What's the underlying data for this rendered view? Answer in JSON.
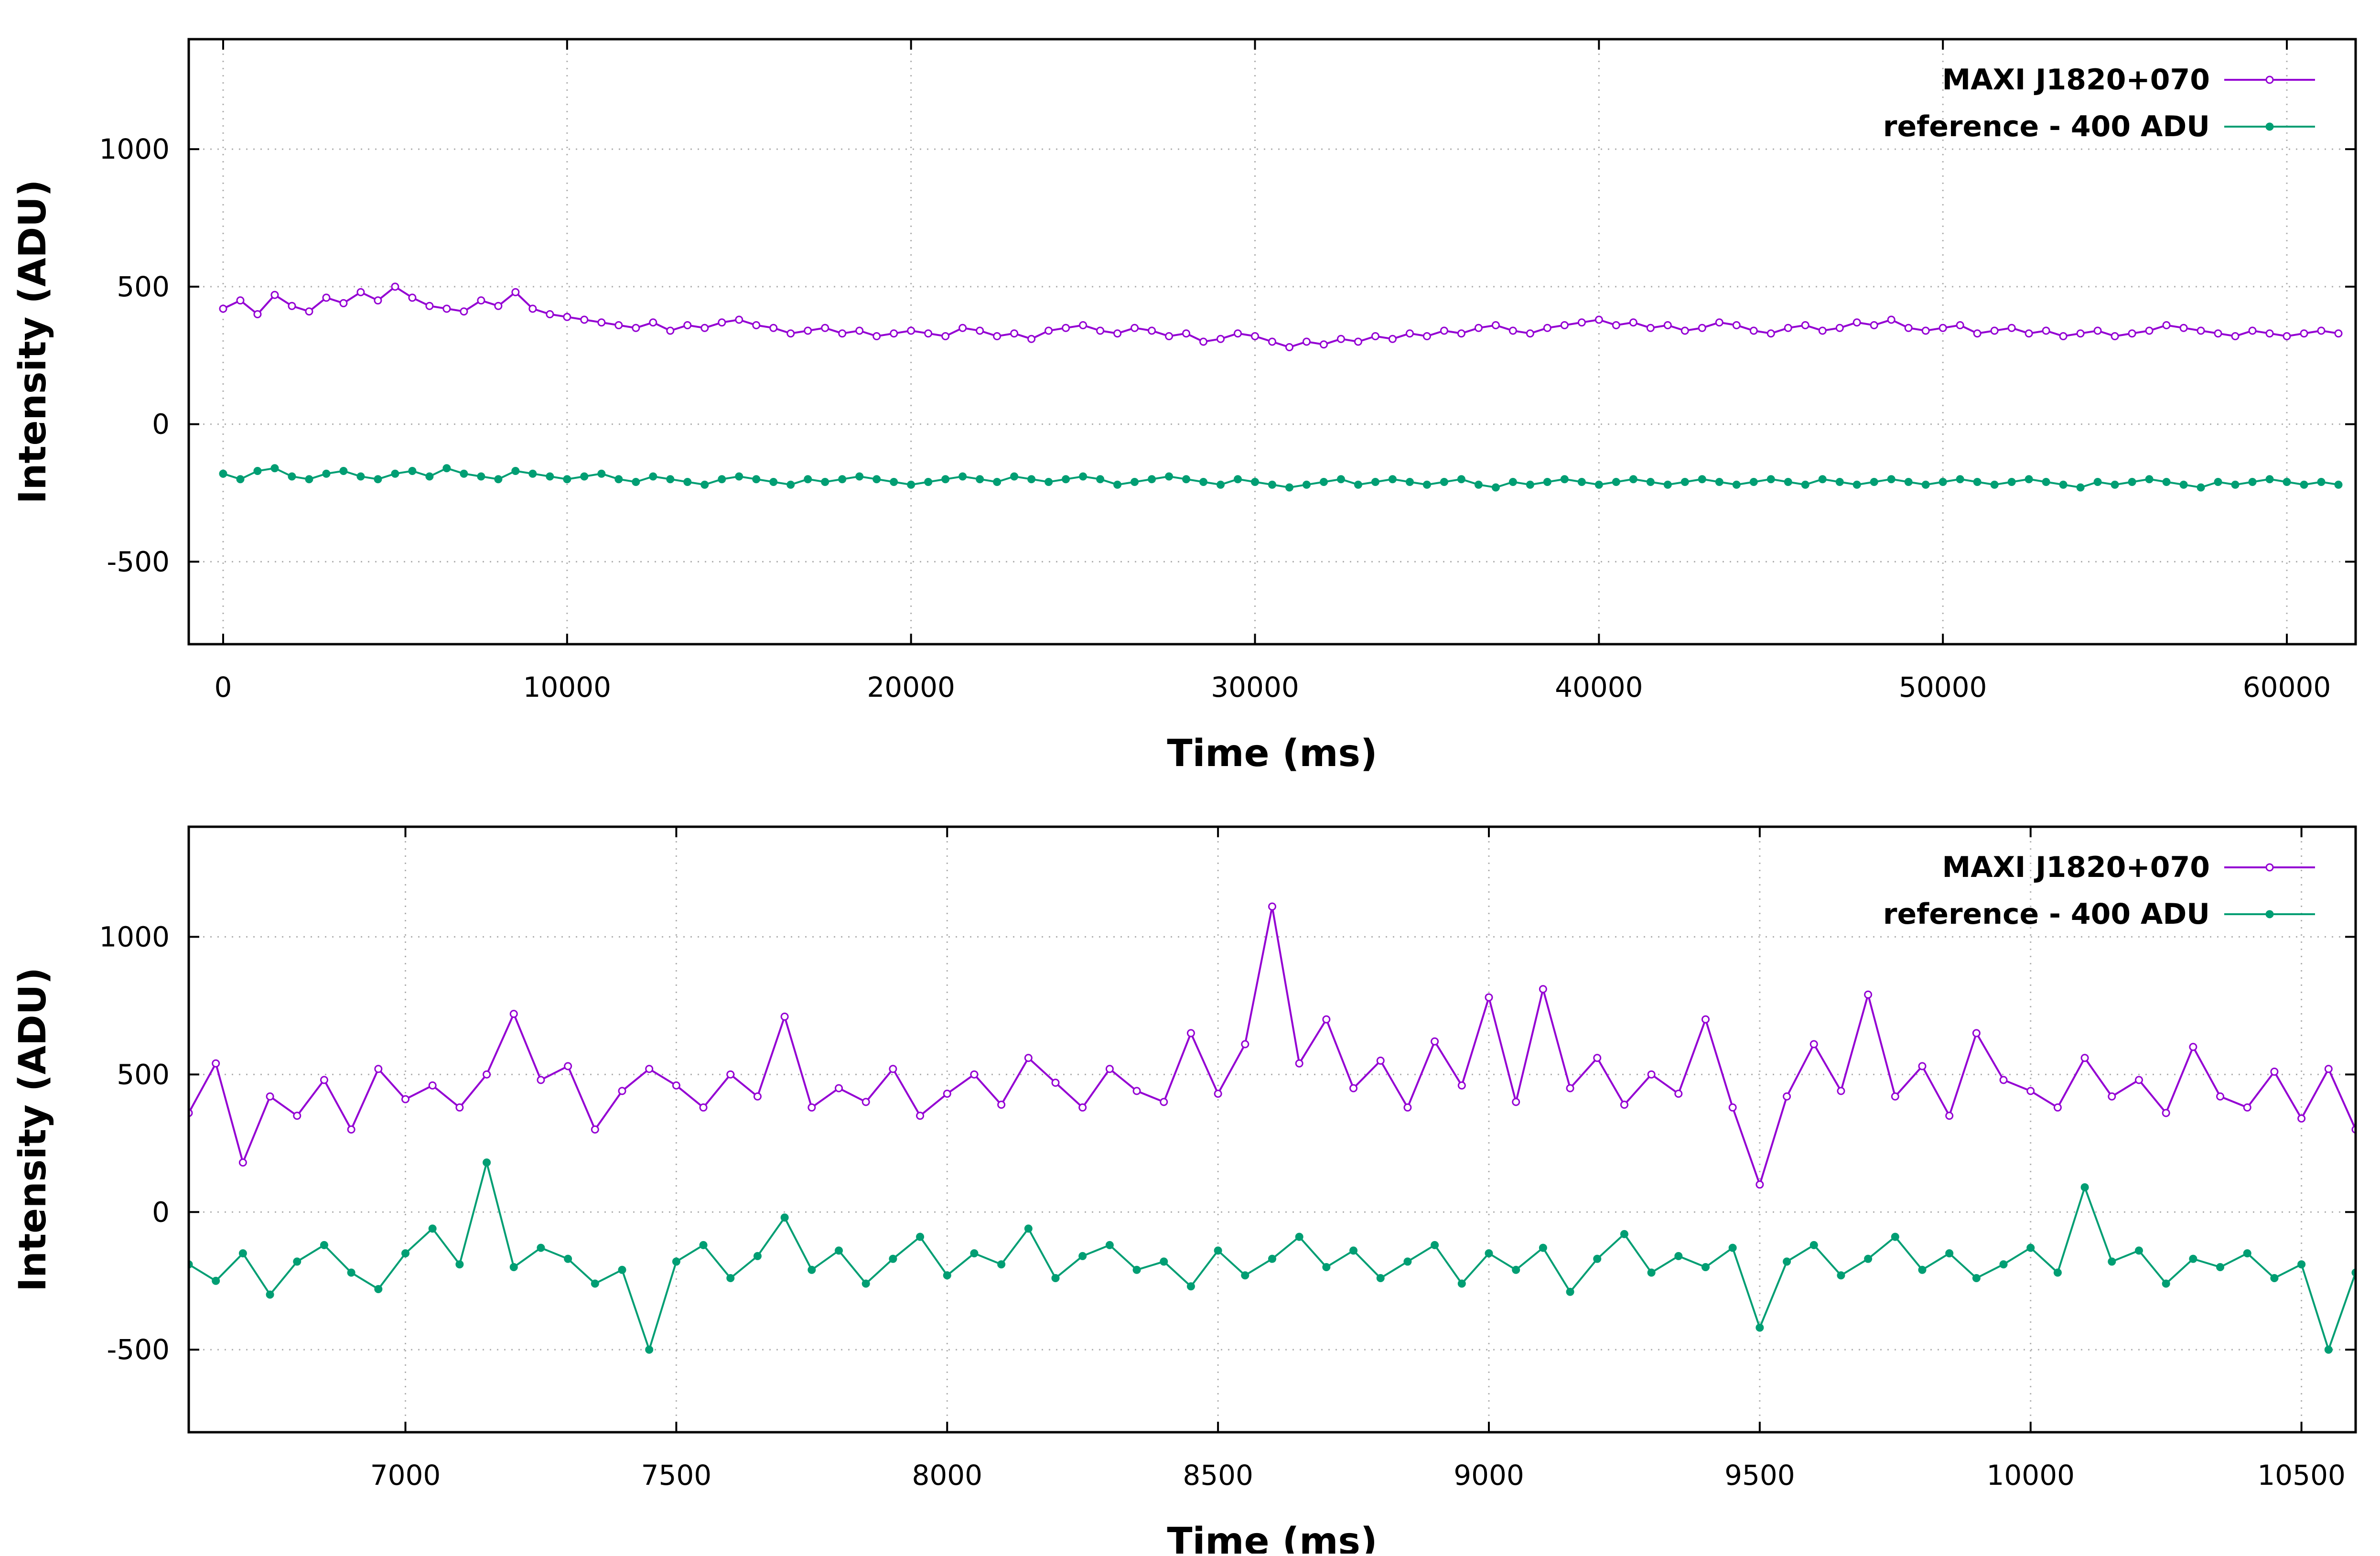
{
  "chart_data": [
    {
      "type": "line",
      "panel": "overview",
      "xlabel": "Time (ms)",
      "ylabel": "Intensity (ADU)",
      "xlim": [
        -1000,
        62000
      ],
      "ylim": [
        -800,
        1400
      ],
      "xticks": [
        "0",
        "10000",
        "20000",
        "30000",
        "40000",
        "50000",
        "60000"
      ],
      "yticks": [
        "-500",
        "0",
        "500",
        "1000"
      ],
      "grid": true,
      "legend_position": "top-right",
      "x": [
        0,
        500,
        1000,
        1500,
        2000,
        2500,
        3000,
        3500,
        4000,
        4500,
        5000,
        5500,
        6000,
        6500,
        7000,
        7500,
        8000,
        8500,
        9000,
        9500,
        10000,
        10500,
        11000,
        11500,
        12000,
        12500,
        13000,
        13500,
        14000,
        14500,
        15000,
        15500,
        16000,
        16500,
        17000,
        17500,
        18000,
        18500,
        19000,
        19500,
        20000,
        20500,
        21000,
        21500,
        22000,
        22500,
        23000,
        23500,
        24000,
        24500,
        25000,
        25500,
        26000,
        26500,
        27000,
        27500,
        28000,
        28500,
        29000,
        29500,
        30000,
        30500,
        31000,
        31500,
        32000,
        32500,
        33000,
        33500,
        34000,
        34500,
        35000,
        35500,
        36000,
        36500,
        37000,
        37500,
        38000,
        38500,
        39000,
        39500,
        40000,
        40500,
        41000,
        41500,
        42000,
        42500,
        43000,
        43500,
        44000,
        44500,
        45000,
        45500,
        46000,
        46500,
        47000,
        47500,
        48000,
        48500,
        49000,
        49500,
        50000,
        50500,
        51000,
        51500,
        52000,
        52500,
        53000,
        53500,
        54000,
        54500,
        55000,
        55500,
        56000,
        56500,
        57000,
        57500,
        58000,
        58500,
        59000,
        59500,
        60000,
        60500,
        61000,
        61500
      ],
      "series": [
        {
          "name": "MAXI J1820+070",
          "color": "#9400d3",
          "values": [
            420,
            450,
            400,
            470,
            430,
            410,
            460,
            440,
            480,
            450,
            500,
            460,
            430,
            420,
            410,
            450,
            430,
            480,
            420,
            400,
            390,
            380,
            370,
            360,
            350,
            370,
            340,
            360,
            350,
            370,
            380,
            360,
            350,
            330,
            340,
            350,
            330,
            340,
            320,
            330,
            340,
            330,
            320,
            350,
            340,
            320,
            330,
            310,
            340,
            350,
            360,
            340,
            330,
            350,
            340,
            320,
            330,
            300,
            310,
            330,
            320,
            300,
            280,
            300,
            290,
            310,
            300,
            320,
            310,
            330,
            320,
            340,
            330,
            350,
            360,
            340,
            330,
            350,
            360,
            370,
            380,
            360,
            370,
            350,
            360,
            340,
            350,
            370,
            360,
            340,
            330,
            350,
            360,
            340,
            350,
            370,
            360,
            380,
            350,
            340,
            350,
            360,
            330,
            340,
            350,
            330,
            340,
            320,
            330,
            340,
            320,
            330,
            340,
            360,
            350,
            340,
            330,
            320,
            340,
            330,
            320,
            330,
            340,
            330
          ]
        },
        {
          "name": "reference - 400 ADU",
          "color": "#009e73",
          "values": [
            -180,
            -200,
            -170,
            -160,
            -190,
            -200,
            -180,
            -170,
            -190,
            -200,
            -180,
            -170,
            -190,
            -160,
            -180,
            -190,
            -200,
            -170,
            -180,
            -190,
            -200,
            -190,
            -180,
            -200,
            -210,
            -190,
            -200,
            -210,
            -220,
            -200,
            -190,
            -200,
            -210,
            -220,
            -200,
            -210,
            -200,
            -190,
            -200,
            -210,
            -220,
            -210,
            -200,
            -190,
            -200,
            -210,
            -190,
            -200,
            -210,
            -200,
            -190,
            -200,
            -220,
            -210,
            -200,
            -190,
            -200,
            -210,
            -220,
            -200,
            -210,
            -220,
            -230,
            -220,
            -210,
            -200,
            -220,
            -210,
            -200,
            -210,
            -220,
            -210,
            -200,
            -220,
            -230,
            -210,
            -220,
            -210,
            -200,
            -210,
            -220,
            -210,
            -200,
            -210,
            -220,
            -210,
            -200,
            -210,
            -220,
            -210,
            -200,
            -210,
            -220,
            -200,
            -210,
            -220,
            -210,
            -200,
            -210,
            -220,
            -210,
            -200,
            -210,
            -220,
            -210,
            -200,
            -210,
            -220,
            -230,
            -210,
            -220,
            -210,
            -200,
            -210,
            -220,
            -230,
            -210,
            -220,
            -210,
            -200,
            -210,
            -220,
            -210,
            -220
          ]
        }
      ]
    },
    {
      "type": "line",
      "panel": "zoom",
      "xlabel": "Time (ms)",
      "ylabel": "Intensity (ADU)",
      "xlim": [
        6600,
        10600
      ],
      "ylim": [
        -800,
        1400
      ],
      "xticks": [
        "7000",
        "7500",
        "8000",
        "8500",
        "9000",
        "9500",
        "10000",
        "10500"
      ],
      "yticks": [
        "-500",
        "0",
        "500",
        "1000"
      ],
      "grid": true,
      "legend_position": "top-right",
      "x": [
        6600,
        6650,
        6700,
        6750,
        6800,
        6850,
        6900,
        6950,
        7000,
        7050,
        7100,
        7150,
        7200,
        7250,
        7300,
        7350,
        7400,
        7450,
        7500,
        7550,
        7600,
        7650,
        7700,
        7750,
        7800,
        7850,
        7900,
        7950,
        8000,
        8050,
        8100,
        8150,
        8200,
        8250,
        8300,
        8350,
        8400,
        8450,
        8500,
        8550,
        8600,
        8650,
        8700,
        8750,
        8800,
        8850,
        8900,
        8950,
        9000,
        9050,
        9100,
        9150,
        9200,
        9250,
        9300,
        9350,
        9400,
        9450,
        9500,
        9550,
        9600,
        9650,
        9700,
        9750,
        9800,
        9850,
        9900,
        9950,
        10000,
        10050,
        10100,
        10150,
        10200,
        10250,
        10300,
        10350,
        10400,
        10450,
        10500,
        10550,
        10600
      ],
      "series": [
        {
          "name": "MAXI J1820+070",
          "color": "#9400d3",
          "values": [
            360,
            540,
            180,
            420,
            350,
            480,
            300,
            520,
            410,
            460,
            380,
            500,
            720,
            480,
            530,
            300,
            440,
            520,
            460,
            380,
            500,
            420,
            710,
            380,
            450,
            400,
            520,
            350,
            430,
            500,
            390,
            560,
            470,
            380,
            520,
            440,
            400,
            650,
            430,
            610,
            1110,
            540,
            700,
            450,
            550,
            380,
            620,
            460,
            780,
            400,
            810,
            450,
            560,
            390,
            500,
            430,
            700,
            380,
            100,
            420,
            610,
            440,
            790,
            420,
            530,
            350,
            650,
            480,
            440,
            380,
            560,
            420,
            480,
            360,
            600,
            420,
            380,
            510,
            340,
            520,
            300
          ]
        },
        {
          "name": "reference - 400 ADU",
          "color": "#009e73",
          "values": [
            -190,
            -250,
            -150,
            -300,
            -180,
            -120,
            -220,
            -280,
            -150,
            -60,
            -190,
            180,
            -200,
            -130,
            -170,
            -260,
            -210,
            -500,
            -180,
            -120,
            -240,
            -160,
            -20,
            -210,
            -140,
            -260,
            -170,
            -90,
            -230,
            -150,
            -190,
            -60,
            -240,
            -160,
            -120,
            -210,
            -180,
            -270,
            -140,
            -230,
            -170,
            -90,
            -200,
            -140,
            -240,
            -180,
            -120,
            -260,
            -150,
            -210,
            -130,
            -290,
            -170,
            -80,
            -220,
            -160,
            -200,
            -130,
            -420,
            -180,
            -120,
            -230,
            -170,
            -90,
            -210,
            -150,
            -240,
            -190,
            -130,
            -220,
            90,
            -180,
            -140,
            -260,
            -170,
            -200,
            -150,
            -240,
            -190,
            -500,
            -220
          ]
        }
      ]
    }
  ]
}
